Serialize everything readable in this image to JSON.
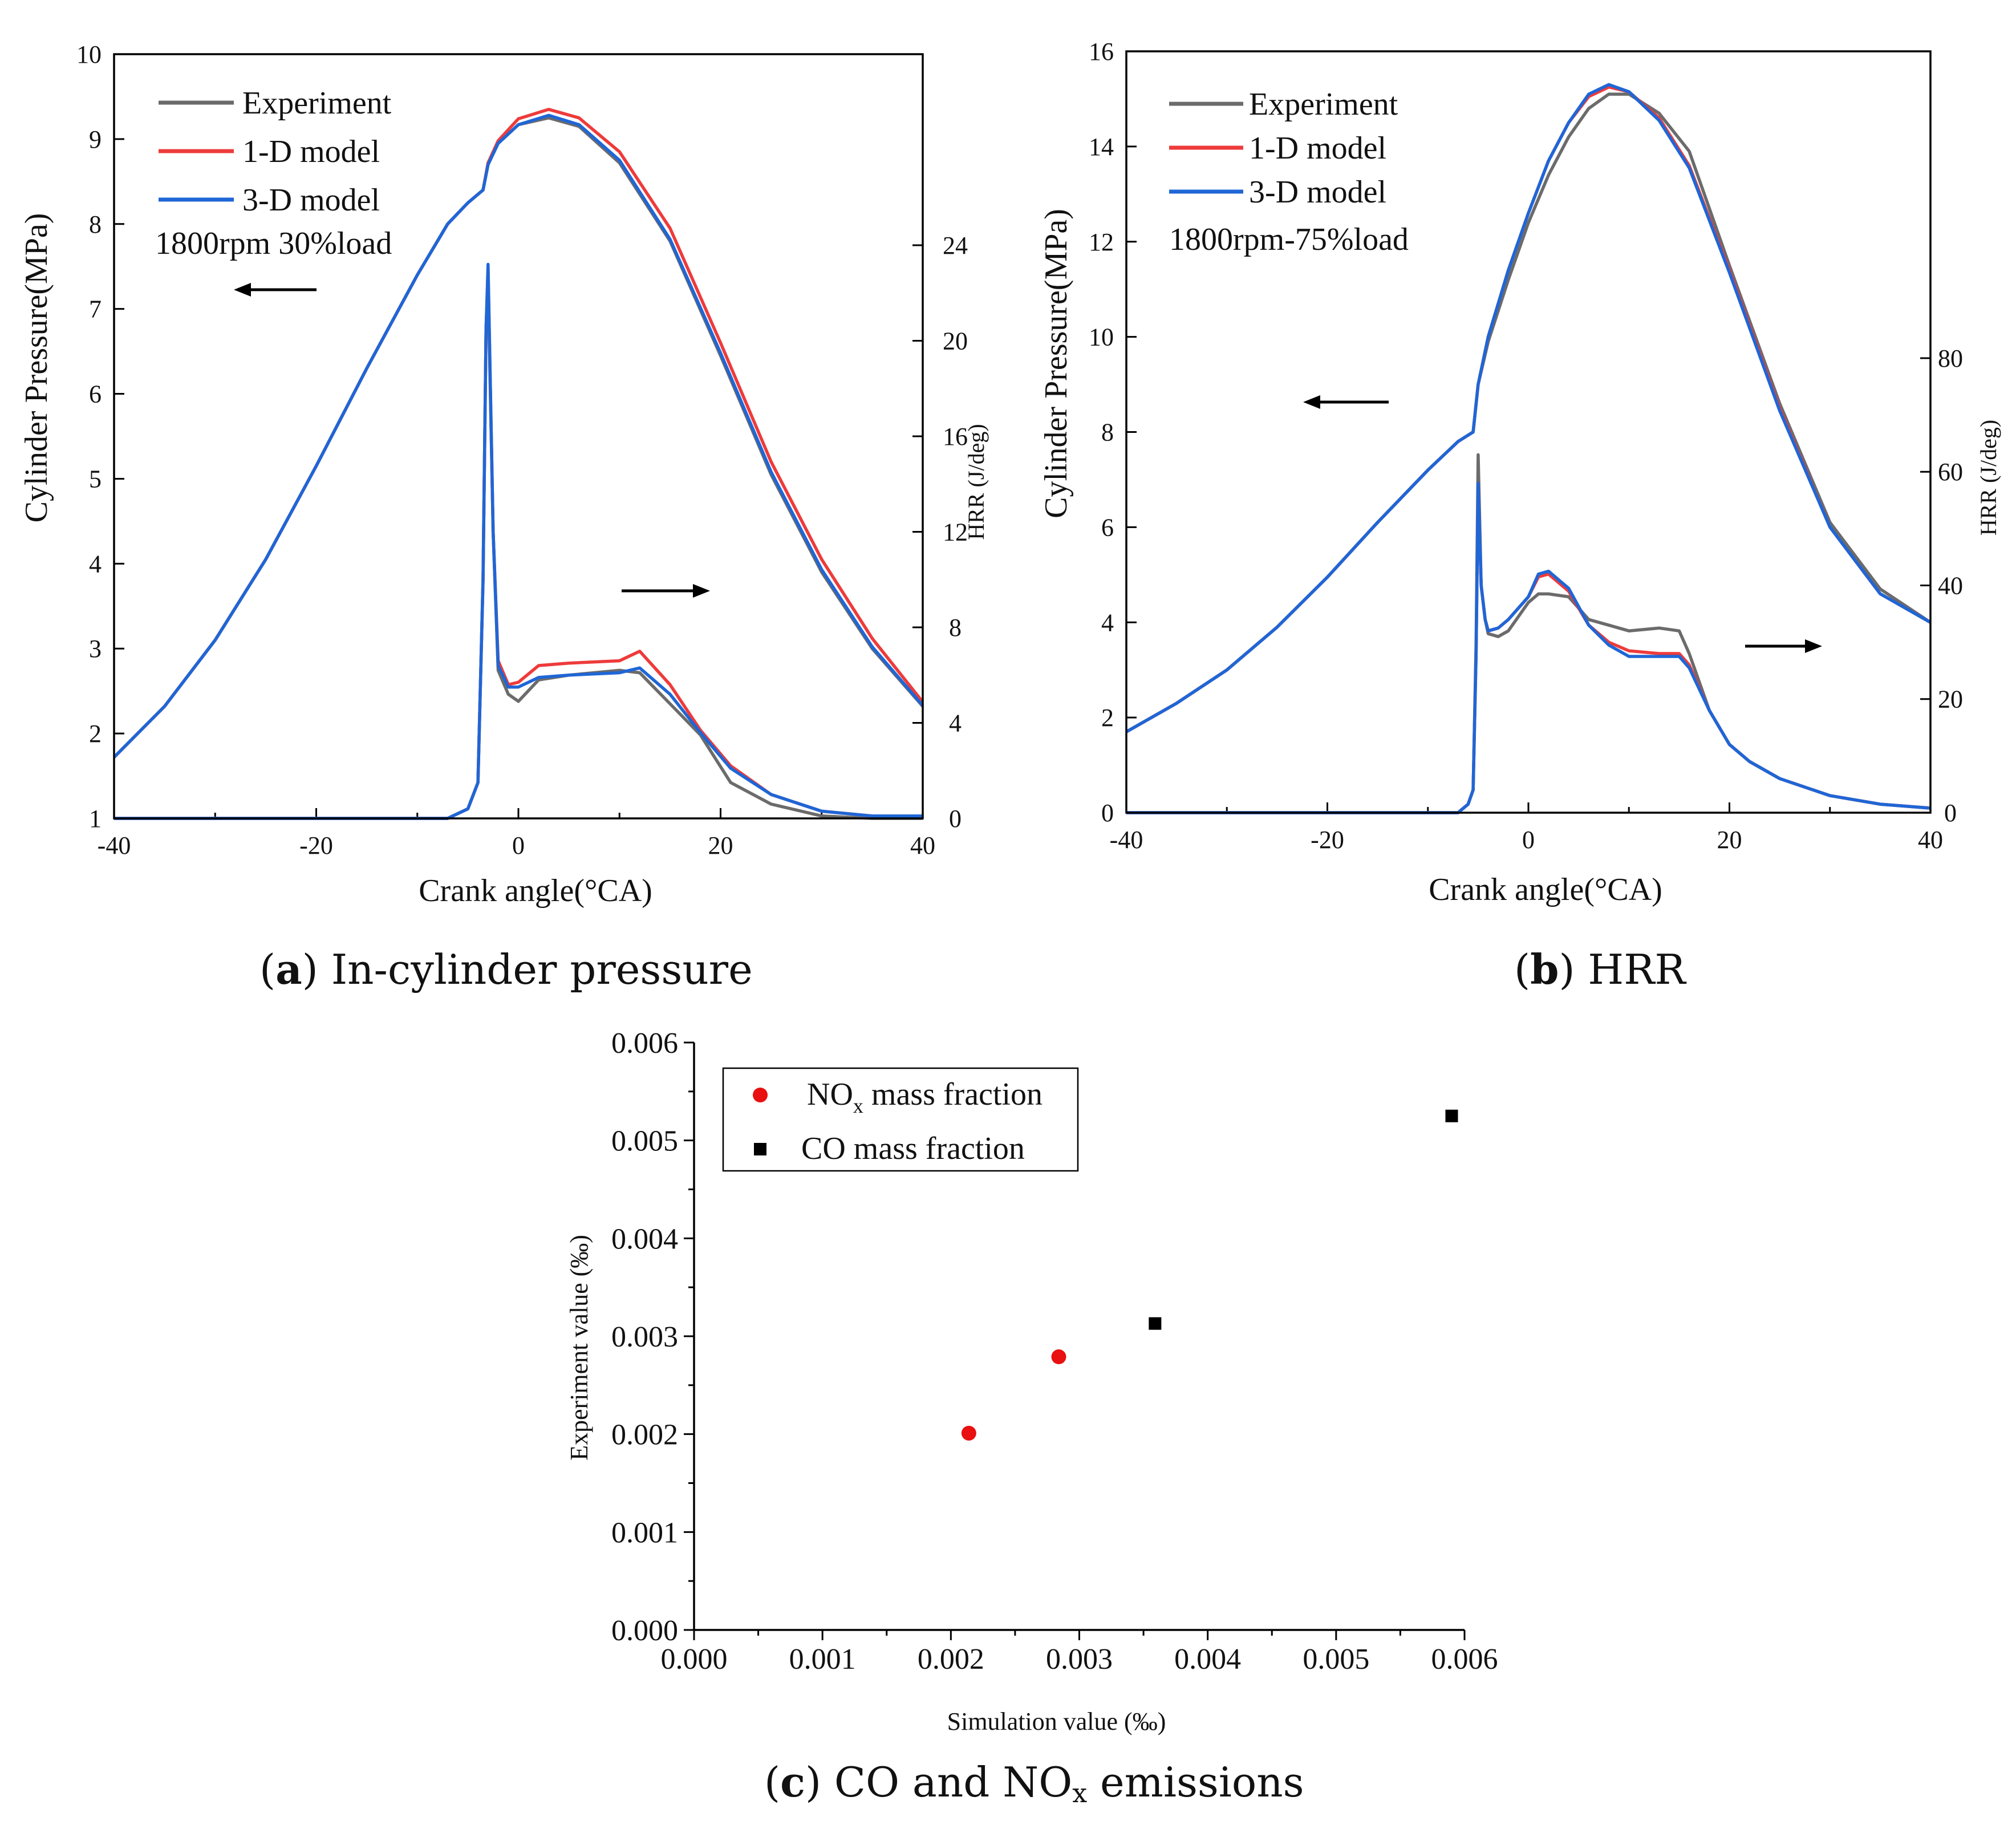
{
  "figure": {
    "caption_a": {
      "letter": "a",
      "text": "In-cylinder pressure"
    },
    "caption_b": {
      "letter": "b",
      "text": "HRR"
    },
    "caption_c": {
      "letter": "c",
      "pre": "CO and NO",
      "sub": "x",
      "post": " emissions"
    }
  },
  "colors": {
    "experiment": "#6b6b6b",
    "model_1d": "#ee3b3b",
    "model_3d": "#1f66d6",
    "nox": "#e81010",
    "co": "#000000"
  },
  "chart_data": [
    {
      "id": "a",
      "type": "line",
      "title": "(a) In-cylinder pressure",
      "xlabel": "Crank angle(°CA)",
      "ylabel": "Cylinder Pressure(MPa)",
      "y2label": "HRR (J/deg)",
      "xlim": [
        -40,
        40
      ],
      "ylim": [
        1,
        10
      ],
      "y2lim": [
        0,
        32
      ],
      "xticks": [
        -40,
        -20,
        0,
        20,
        40
      ],
      "yticks": [
        1,
        2,
        3,
        4,
        5,
        6,
        7,
        8,
        9,
        10
      ],
      "y2ticks": [
        0,
        4,
        8,
        12,
        16,
        20,
        24
      ],
      "legend": [
        "Experiment",
        "1-D model",
        "3-D model"
      ],
      "annotation": "1800rpm 30%load",
      "pressure": {
        "x": [
          -40,
          -35,
          -30,
          -25,
          -20,
          -15,
          -10,
          -7,
          -5,
          -3.5,
          -3,
          -2,
          0,
          3,
          6,
          10,
          15,
          20,
          25,
          30,
          35,
          40
        ],
        "experiment": [
          1.72,
          2.32,
          3.1,
          4.05,
          5.15,
          6.3,
          7.4,
          8.0,
          8.25,
          8.4,
          8.7,
          8.95,
          9.17,
          9.25,
          9.15,
          8.72,
          7.8,
          6.45,
          5.05,
          3.9,
          3.0,
          2.32
        ],
        "model_1d": [
          1.72,
          2.32,
          3.1,
          4.05,
          5.15,
          6.3,
          7.4,
          8.0,
          8.25,
          8.4,
          8.72,
          8.98,
          9.24,
          9.35,
          9.25,
          8.85,
          7.95,
          6.6,
          5.2,
          4.05,
          3.12,
          2.37
        ],
        "model_3d": [
          1.72,
          2.32,
          3.1,
          4.05,
          5.15,
          6.3,
          7.4,
          8.0,
          8.25,
          8.4,
          8.7,
          8.95,
          9.17,
          9.28,
          9.17,
          8.75,
          7.82,
          6.48,
          5.08,
          3.93,
          3.02,
          2.33
        ]
      },
      "hrr": {
        "x": [
          -40,
          -7,
          -5,
          -4,
          -3.5,
          -3.2,
          -3,
          -2.5,
          -2,
          -1,
          0,
          2,
          5,
          10,
          12,
          15,
          18,
          21,
          25,
          30,
          35,
          40
        ],
        "experiment": [
          0,
          0,
          0.4,
          1.5,
          10,
          20.5,
          22.6,
          12,
          6.2,
          5.2,
          4.9,
          5.8,
          6.0,
          6.2,
          6.1,
          4.8,
          3.5,
          1.5,
          0.6,
          0.1,
          0,
          0
        ],
        "model_1d": [
          0,
          0,
          0.4,
          1.5,
          10,
          20.5,
          23.0,
          12,
          6.6,
          5.6,
          5.7,
          6.4,
          6.5,
          6.6,
          7.0,
          5.6,
          3.7,
          2.2,
          1.0,
          0.3,
          0.1,
          0.1
        ],
        "model_3d": [
          0,
          0,
          0.4,
          1.5,
          10,
          20.5,
          23.2,
          12,
          6.4,
          5.5,
          5.5,
          5.9,
          6.0,
          6.1,
          6.3,
          5.2,
          3.6,
          2.1,
          1.0,
          0.3,
          0.1,
          0.1
        ]
      }
    },
    {
      "id": "b",
      "type": "line",
      "title": "(b) HRR",
      "xlabel": "Crank angle(°CA)",
      "ylabel": "Cylinder Pressure(MPa)",
      "y2label": "HRR (J/deg)",
      "xlim": [
        -40,
        40
      ],
      "ylim": [
        0,
        16
      ],
      "y2lim": [
        0,
        134
      ],
      "xticks": [
        -40,
        -20,
        0,
        20,
        40
      ],
      "yticks": [
        0,
        2,
        4,
        6,
        8,
        10,
        12,
        14,
        16
      ],
      "y2ticks": [
        0,
        20,
        40,
        60,
        80
      ],
      "legend": [
        "Experiment",
        "1-D model",
        "3-D model"
      ],
      "annotation": "1800rpm-75%load",
      "pressure": {
        "x": [
          -40,
          -35,
          -30,
          -25,
          -20,
          -15,
          -10,
          -7,
          -5.5,
          -5,
          -4,
          -2,
          0,
          2,
          4,
          6,
          8,
          10,
          13,
          16,
          20,
          25,
          30,
          35,
          40
        ],
        "experiment": [
          1.7,
          2.3,
          3.0,
          3.9,
          4.95,
          6.1,
          7.2,
          7.8,
          8.0,
          9.0,
          9.9,
          11.2,
          12.4,
          13.4,
          14.2,
          14.8,
          15.1,
          15.1,
          14.7,
          13.9,
          11.5,
          8.6,
          6.1,
          4.7,
          4.0
        ],
        "model_1d": [
          1.7,
          2.3,
          3.0,
          3.9,
          4.95,
          6.1,
          7.2,
          7.8,
          8.0,
          9.0,
          10.0,
          11.4,
          12.6,
          13.7,
          14.5,
          15.05,
          15.25,
          15.15,
          14.6,
          13.6,
          11.4,
          8.5,
          6.0,
          4.6,
          4.0
        ],
        "model_3d": [
          1.7,
          2.3,
          3.0,
          3.9,
          4.95,
          6.1,
          7.2,
          7.8,
          8.0,
          9.0,
          10.0,
          11.4,
          12.6,
          13.7,
          14.5,
          15.1,
          15.3,
          15.15,
          14.55,
          13.55,
          11.35,
          8.45,
          6.0,
          4.6,
          4.0
        ]
      },
      "hrr": {
        "x": [
          -40,
          -7,
          -6,
          -5.5,
          -5.2,
          -5,
          -4.7,
          -4.3,
          -4,
          -3,
          -2,
          0,
          1,
          2,
          4,
          6,
          8,
          10,
          13,
          15,
          16,
          18,
          20,
          22,
          25,
          30,
          35,
          40
        ],
        "experiment": [
          0,
          0,
          1.5,
          4,
          30,
          63,
          40,
          34,
          31.5,
          31,
          32,
          37,
          38.5,
          38.5,
          38,
          34,
          33,
          32,
          32.5,
          32,
          28,
          18,
          12,
          9,
          6,
          3,
          1.5,
          0.8
        ],
        "model_1d": [
          0,
          0,
          1.5,
          4,
          28,
          58,
          40,
          34,
          32,
          32.5,
          34,
          38,
          41.5,
          42,
          39,
          33,
          30,
          28.5,
          28,
          28,
          26,
          18,
          12,
          9,
          6,
          3,
          1.5,
          0.8
        ],
        "model_3d": [
          0,
          0,
          1.5,
          4,
          28,
          58,
          40,
          34,
          32,
          32.5,
          34,
          38,
          42,
          42.5,
          39.5,
          33,
          29.5,
          27.5,
          27.5,
          27.5,
          25.5,
          18,
          12,
          9,
          6,
          3,
          1.5,
          0.8
        ]
      }
    },
    {
      "id": "c",
      "type": "scatter",
      "title": "(c) CO and NOx emissions",
      "xlabel": "Simulation value (‰)",
      "ylabel": "Experiment value (‰)",
      "xlim": [
        0,
        0.006
      ],
      "ylim": [
        0,
        0.006
      ],
      "xticks": [
        "0.000",
        "0.001",
        "0.002",
        "0.003",
        "0.004",
        "0.005",
        "0.006"
      ],
      "yticks": [
        "0.000",
        "0.001",
        "0.002",
        "0.003",
        "0.004",
        "0.005",
        "0.006"
      ],
      "series": [
        {
          "name_main": "NO",
          "name_sub": "x",
          "name_rest": " mass fraction",
          "marker": "circle",
          "points": [
            [
              0.00214,
              0.00201
            ],
            [
              0.00284,
              0.00279
            ]
          ]
        },
        {
          "name_main": "CO mass fraction",
          "name_sub": "",
          "name_rest": "",
          "marker": "square",
          "points": [
            [
              0.00359,
              0.00313
            ],
            [
              0.0059,
              0.00525
            ]
          ]
        }
      ]
    }
  ]
}
